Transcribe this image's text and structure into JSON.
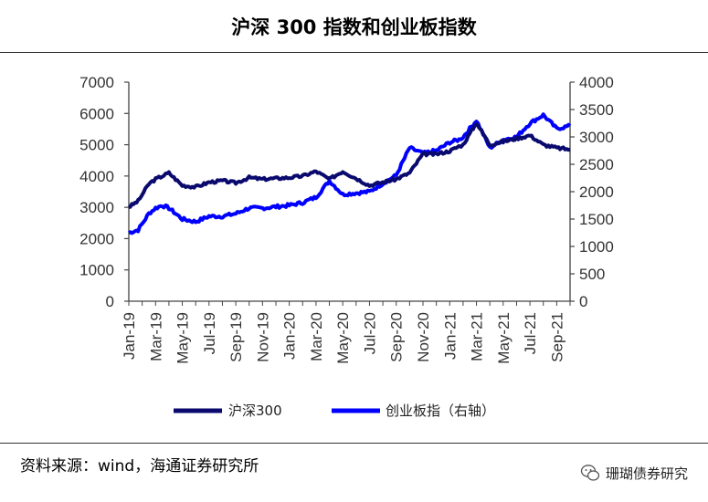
{
  "header": {
    "title": "沪深 300 指数和创业板指数"
  },
  "footer": {
    "source": "资料来源：wind，海通证券研究所",
    "watermark": "珊瑚债券研究",
    "watermark_icon": "wechat-icon"
  },
  "chart_data": {
    "type": "line",
    "title": "沪深 300 指数和创业板指数",
    "xlabel": "",
    "ylabel_left": "",
    "ylabel_right": "",
    "ylim_left": [
      0,
      7000
    ],
    "ylim_right": [
      0,
      4000
    ],
    "yticks_left": [
      "0",
      "1000",
      "2000",
      "3000",
      "4000",
      "5000",
      "6000",
      "7000"
    ],
    "yticks_right": [
      "0",
      "500",
      "1000",
      "1500",
      "2000",
      "2500",
      "3000",
      "3500",
      "4000"
    ],
    "categories": [
      "Jan-19",
      "Mar-19",
      "May-19",
      "Jul-19",
      "Sep-19",
      "Nov-19",
      "Jan-20",
      "Mar-20",
      "May-20",
      "Jul-20",
      "Sep-20",
      "Nov-20",
      "Jan-21",
      "Mar-21",
      "May-21",
      "Jul-21",
      "Sep-21"
    ],
    "x": [
      0,
      0.7,
      1.5,
      2,
      2.5,
      3,
      4,
      5,
      6,
      7,
      8,
      9,
      10,
      12,
      13,
      14,
      15,
      16,
      18,
      19,
      20,
      21,
      22,
      23,
      24,
      24.7,
      25,
      26,
      27,
      28,
      29,
      30,
      31,
      32,
      33
    ],
    "grid": false,
    "legend_position": "bottom",
    "series": [
      {
        "name": "沪深300",
        "axis": "left",
        "color": "#0a0a6e",
        "values": [
          3010,
          3200,
          3750,
          3900,
          4000,
          4100,
          3700,
          3650,
          3800,
          3850,
          3780,
          3950,
          3900,
          3950,
          4000,
          4150,
          3900,
          4150,
          3700,
          3800,
          3900,
          4100,
          4700,
          4700,
          4800,
          4950,
          5000,
          5700,
          5000,
          5100,
          5200,
          5300,
          5000,
          4900,
          4850
        ]
      },
      {
        "name": "创业板指（右轴）",
        "axis": "right",
        "color": "#0000ff",
        "values": [
          1250,
          1300,
          1600,
          1700,
          1750,
          1700,
          1500,
          1450,
          1550,
          1550,
          1600,
          1700,
          1700,
          1750,
          1800,
          1900,
          2200,
          1950,
          2000,
          2150,
          2300,
          2800,
          2700,
          2750,
          2900,
          2950,
          3000,
          3300,
          2800,
          2950,
          3000,
          3250,
          3400,
          3150,
          3200
        ]
      }
    ]
  }
}
